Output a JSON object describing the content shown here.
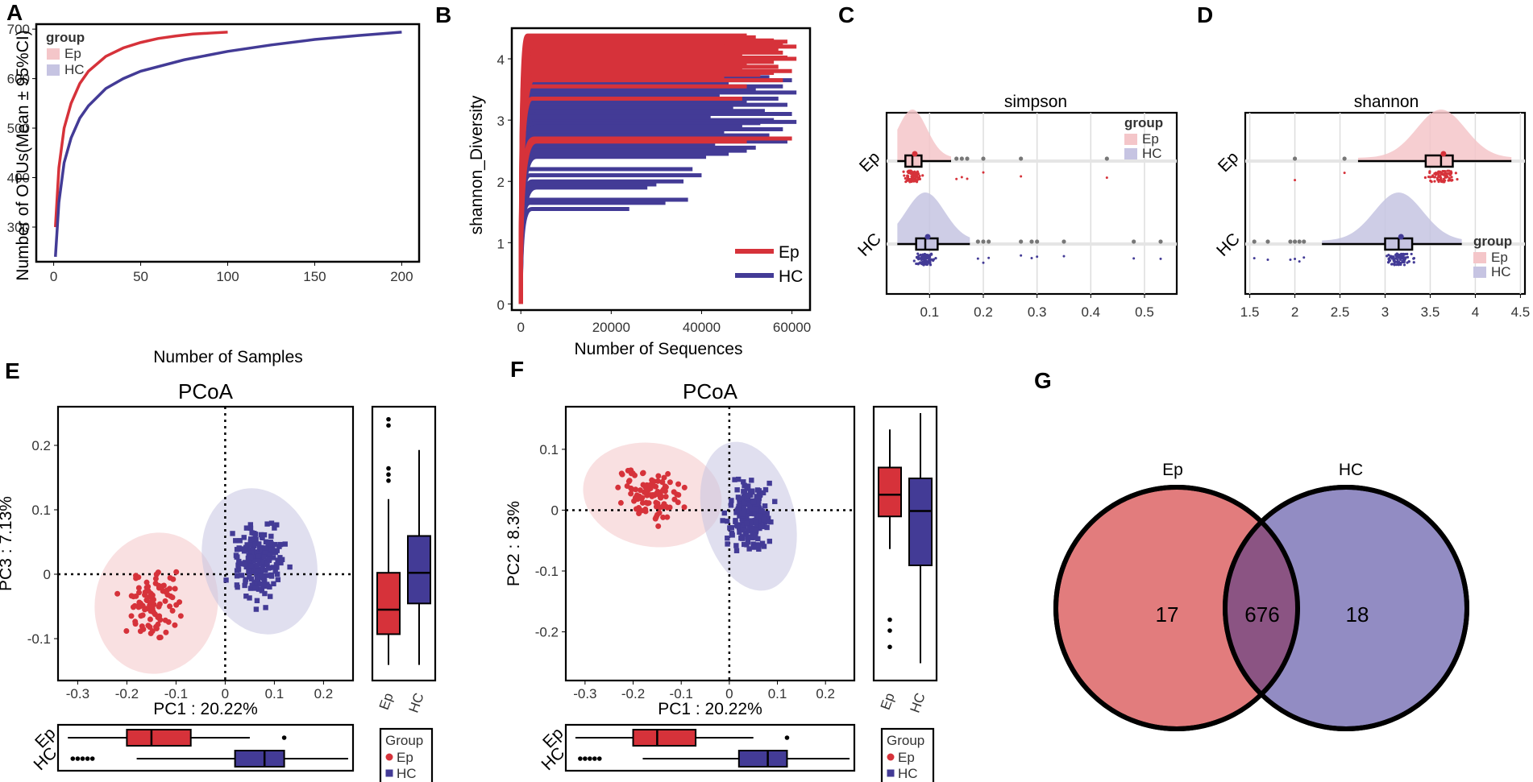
{
  "colors": {
    "ep": "#d6323a",
    "hc": "#433b96",
    "ep_light": "#f4c6c9",
    "hc_light": "#c6c4e2",
    "venn_ep": "#e27c7d",
    "venn_hc": "#928cc3",
    "venn_overlap": "#8b5483"
  },
  "panels": {
    "A": "A",
    "B": "B",
    "C": "C",
    "D": "D",
    "E": "E",
    "F": "F",
    "G": "G"
  },
  "chart_data": [
    {
      "id": "A",
      "type": "line",
      "title": "",
      "xlabel": "Number of Samples",
      "ylabel": "Number of OTUs(Mean ± 95%CI)",
      "xlim": [
        -10,
        210
      ],
      "ylim": [
        230,
        710
      ],
      "xticks": [
        0,
        50,
        100,
        150,
        200
      ],
      "yticks": [
        300,
        400,
        500,
        600,
        700
      ],
      "legend": {
        "title": "group",
        "entries": [
          "Ep",
          "HC"
        ],
        "position": "top-left"
      },
      "series": [
        {
          "name": "Ep",
          "x": [
            1,
            3,
            6,
            10,
            15,
            20,
            30,
            40,
            50,
            60,
            70,
            80,
            90,
            100
          ],
          "y": [
            300,
            420,
            500,
            550,
            590,
            615,
            645,
            662,
            673,
            681,
            686,
            690,
            692,
            694
          ]
        },
        {
          "name": "HC",
          "x": [
            1,
            3,
            6,
            10,
            15,
            20,
            30,
            40,
            50,
            75,
            100,
            125,
            150,
            175,
            200
          ],
          "y": [
            240,
            350,
            430,
            480,
            520,
            545,
            580,
            600,
            615,
            638,
            655,
            668,
            679,
            687,
            694
          ]
        }
      ]
    },
    {
      "id": "B",
      "type": "line",
      "title": "",
      "xlabel": "Number of Sequences",
      "ylabel": "shannon_Diversity",
      "xlim": [
        -2000,
        64000
      ],
      "ylim": [
        -0.1,
        4.5
      ],
      "xticks": [
        0,
        20000,
        40000,
        60000
      ],
      "yticks": [
        0,
        1,
        2,
        3,
        4
      ],
      "legend": {
        "entries": [
          "Ep",
          "HC"
        ],
        "position": "bottom-right"
      },
      "series": [
        {
          "name": "Ep",
          "plateaus": [
            4.38,
            4.35,
            4.33,
            4.3,
            4.28,
            4.25,
            4.22,
            4.2,
            4.17,
            4.15,
            4.12,
            4.1,
            4.07,
            4.05,
            4.02,
            4.0,
            3.98,
            3.95,
            3.9,
            3.87,
            3.85,
            3.8,
            3.77,
            3.74,
            3.71,
            3.65,
            3.55,
            3.35,
            2.7,
            2.65
          ],
          "ends": [
            50000,
            52000,
            48000,
            56000,
            59000,
            58000,
            45000,
            61000,
            52000,
            57000,
            55000,
            58000,
            42000,
            49000,
            59000,
            61000,
            52000,
            56000,
            50000,
            57000,
            49000,
            60000,
            56000,
            53000,
            45000,
            58000,
            50000,
            49000,
            60000,
            50000
          ]
        },
        {
          "name": "HC",
          "plateaus": [
            3.8,
            3.75,
            3.7,
            3.65,
            3.6,
            3.55,
            3.5,
            3.45,
            3.4,
            3.35,
            3.3,
            3.25,
            3.2,
            3.15,
            3.1,
            3.05,
            3.0,
            2.97,
            2.95,
            2.9,
            2.85,
            2.8,
            2.75,
            2.7,
            2.65,
            2.6,
            2.55,
            2.5,
            2.45,
            2.4,
            2.2,
            2.1,
            2.0,
            1.95,
            1.9,
            1.7,
            1.65,
            1.55
          ],
          "ends": [
            40000,
            48000,
            55000,
            60000,
            46000,
            58000,
            52000,
            61000,
            44000,
            57000,
            50000,
            59000,
            47000,
            54000,
            60000,
            42000,
            56000,
            61000,
            53000,
            49000,
            58000,
            45000,
            55000,
            51000,
            59000,
            43000,
            52000,
            50000,
            46000,
            41000,
            38000,
            40000,
            36000,
            30000,
            28000,
            37000,
            32000,
            24000
          ]
        }
      ]
    },
    {
      "id": "C",
      "type": "boxplot",
      "title": "simpson",
      "categories": [
        "Ep",
        "HC"
      ],
      "xlim": [
        0.02,
        0.56
      ],
      "xticks": [
        0.1,
        0.2,
        0.3,
        0.4,
        0.5
      ],
      "legend": {
        "title": "group",
        "entries": [
          "Ep",
          "HC"
        ],
        "position": "top-right"
      },
      "series": [
        {
          "name": "Ep",
          "min": 0.04,
          "q1": 0.055,
          "median": 0.068,
          "q3": 0.085,
          "max": 0.14,
          "outliers": [
            0.15,
            0.16,
            0.17,
            0.2,
            0.27,
            0.43
          ]
        },
        {
          "name": "HC",
          "min": 0.04,
          "q1": 0.075,
          "median": 0.092,
          "q3": 0.115,
          "max": 0.175,
          "outliers": [
            0.19,
            0.2,
            0.21,
            0.27,
            0.29,
            0.3,
            0.35,
            0.48,
            0.53
          ]
        }
      ]
    },
    {
      "id": "D",
      "type": "boxplot",
      "title": "shannon",
      "categories": [
        "Ep",
        "HC"
      ],
      "xlim": [
        1.45,
        4.55
      ],
      "xticks": [
        1.5,
        2.0,
        2.5,
        3.0,
        3.5,
        4.0,
        4.5
      ],
      "legend": {
        "title": "group",
        "entries": [
          "Ep",
          "HC"
        ],
        "position": "bottom-right"
      },
      "series": [
        {
          "name": "Ep",
          "min": 2.7,
          "q1": 3.45,
          "median": 3.62,
          "q3": 3.75,
          "max": 4.4,
          "outliers": [
            2.0,
            2.55
          ]
        },
        {
          "name": "HC",
          "min": 2.3,
          "q1": 3.0,
          "median": 3.15,
          "q3": 3.3,
          "max": 3.85,
          "outliers": [
            1.55,
            1.7,
            1.95,
            2.0,
            2.05,
            2.1
          ]
        }
      ]
    },
    {
      "id": "E",
      "type": "scatter",
      "title": "PCoA",
      "xlabel": "PC1 : 20.22%",
      "ylabel": "PC3 : 7.13%",
      "xlim": [
        -0.34,
        0.26
      ],
      "ylim": [
        -0.165,
        0.26
      ],
      "xticks": [
        -0.3,
        -0.2,
        -0.1,
        0.0,
        0.1,
        0.2
      ],
      "yticks": [
        -0.1,
        0.0,
        0.1,
        0.2
      ],
      "legend": {
        "title": "Group",
        "entries": [
          "Ep",
          "HC"
        ],
        "position": "bottom-right"
      },
      "ellipses": [
        {
          "name": "Ep",
          "cx": -0.14,
          "cy": -0.045,
          "rx": 0.125,
          "ry": 0.11
        },
        {
          "name": "HC",
          "cx": 0.07,
          "cy": 0.02,
          "rx": 0.115,
          "ry": 0.115
        }
      ],
      "side_box_y": [
        {
          "name": "Ep",
          "min": -0.15,
          "q1": -0.1,
          "median": -0.06,
          "q3": 0.0,
          "max": 0.12,
          "outliers": [
            0.15,
            0.16,
            0.17,
            0.24,
            0.25
          ]
        },
        {
          "name": "HC",
          "min": -0.15,
          "q1": -0.05,
          "median": 0.0,
          "q3": 0.06,
          "max": 0.2,
          "outliers": []
        }
      ],
      "side_box_x": [
        {
          "name": "Ep",
          "min": -0.32,
          "q1": -0.2,
          "median": -0.15,
          "q3": -0.07,
          "max": 0.05,
          "outliers": [
            0.12
          ]
        },
        {
          "name": "HC",
          "min": -0.18,
          "q1": 0.02,
          "median": 0.08,
          "q3": 0.12,
          "max": 0.25,
          "outliers": [
            -0.31,
            -0.3,
            -0.29,
            -0.28,
            -0.27
          ]
        }
      ]
    },
    {
      "id": "F",
      "type": "scatter",
      "title": "PCoA",
      "xlabel": "PC1 : 20.22%",
      "ylabel": "PC2 : 8.3%",
      "xlim": [
        -0.34,
        0.26
      ],
      "ylim": [
        -0.28,
        0.17
      ],
      "xticks": [
        -0.3,
        -0.2,
        -0.1,
        0.0,
        0.1,
        0.2
      ],
      "yticks": [
        -0.2,
        -0.1,
        0.0,
        0.1
      ],
      "legend": {
        "title": "Group",
        "entries": [
          "Ep",
          "HC"
        ],
        "position": "bottom-right"
      },
      "ellipses": [
        {
          "name": "Ep",
          "cx": -0.16,
          "cy": 0.025,
          "rx": 0.145,
          "ry": 0.085
        },
        {
          "name": "HC",
          "cx": 0.04,
          "cy": -0.01,
          "rx": 0.095,
          "ry": 0.125
        }
      ],
      "side_box_y": [
        {
          "name": "Ep",
          "min": -0.07,
          "q1": -0.01,
          "median": 0.03,
          "q3": 0.08,
          "max": 0.15,
          "outliers": [
            -0.2,
            -0.22,
            -0.25
          ]
        },
        {
          "name": "HC",
          "min": -0.28,
          "q1": -0.1,
          "median": 0.0,
          "q3": 0.06,
          "max": 0.18,
          "outliers": []
        }
      ],
      "side_box_y_range": [
        -0.3,
        0.18
      ],
      "side_box_x": [
        {
          "name": "Ep",
          "min": -0.32,
          "q1": -0.2,
          "median": -0.15,
          "q3": -0.07,
          "max": 0.05,
          "outliers": [
            0.12
          ]
        },
        {
          "name": "HC",
          "min": -0.18,
          "q1": 0.02,
          "median": 0.08,
          "q3": 0.12,
          "max": 0.25,
          "outliers": [
            -0.31,
            -0.3,
            -0.29,
            -0.28,
            -0.27
          ]
        }
      ]
    },
    {
      "id": "G",
      "type": "venn",
      "sets": [
        {
          "name": "Ep",
          "only": "17"
        },
        {
          "name": "HC",
          "only": "18"
        }
      ],
      "overlap": "676"
    }
  ]
}
